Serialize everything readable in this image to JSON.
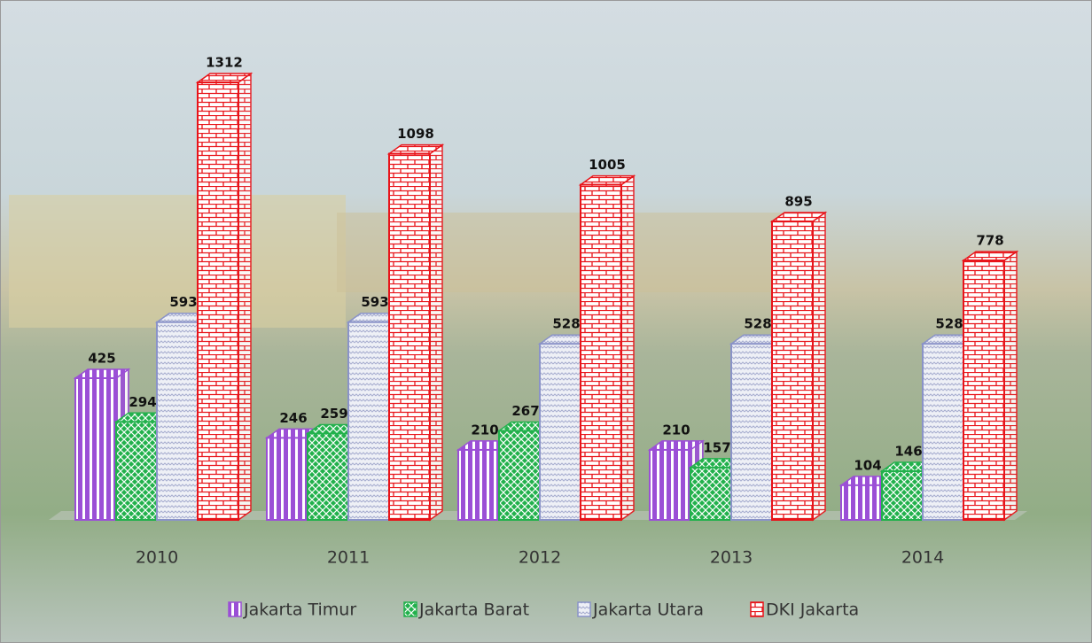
{
  "chart_data": {
    "type": "bar",
    "categories": [
      "2010",
      "2011",
      "2012",
      "2013",
      "2014"
    ],
    "series": [
      {
        "name": "Jakarta Timur",
        "color": "#9b4fd6",
        "values": [
          425,
          246,
          210,
          210,
          104
        ]
      },
      {
        "name": "Jakarta Barat",
        "color": "#22b14c",
        "values": [
          294,
          259,
          267,
          157,
          146
        ]
      },
      {
        "name": "Jakarta Utara",
        "color": "#8a93c8",
        "values": [
          593,
          593,
          528,
          528,
          528
        ]
      },
      {
        "name": "DKI Jakarta",
        "color": "#e8141a",
        "values": [
          1312,
          1098,
          1005,
          895,
          778
        ]
      }
    ]
  }
}
